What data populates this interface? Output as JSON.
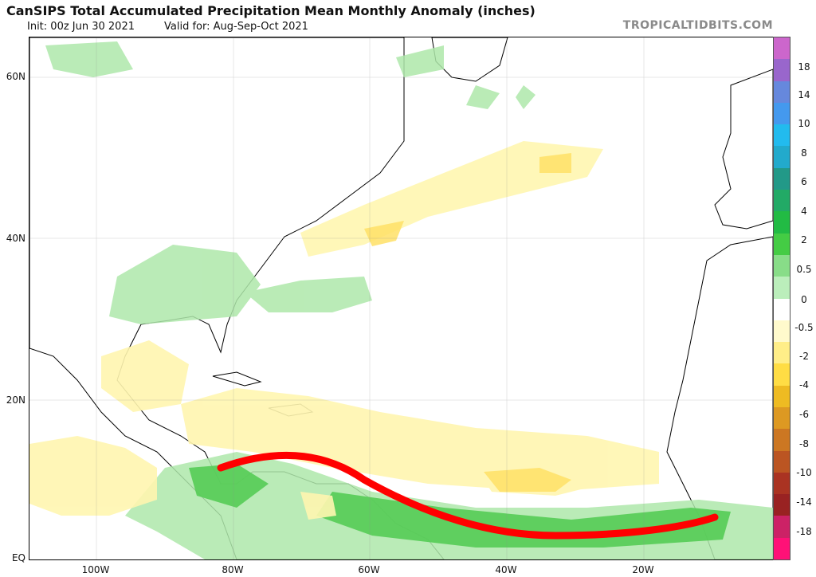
{
  "header": {
    "title": "CanSIPS Total Accumulated Precipitation Mean Monthly Anomaly (inches)",
    "init": "Init: 00z Jun 30 2021",
    "valid": "Valid for: Aug-Sep-Oct 2021",
    "brand": "TROPICALTIDBITS.COM"
  },
  "map": {
    "lat_labels": [
      "60N",
      "40N",
      "20N",
      "EQ"
    ],
    "lon_labels": [
      "100W",
      "80W",
      "60W",
      "40W",
      "20W"
    ],
    "land_color": "#ffffff",
    "ocean_color": "#ffffff",
    "track_color": "#ff0000"
  },
  "colorbar": {
    "labels": [
      "18",
      "14",
      "10",
      "8",
      "6",
      "4",
      "2",
      "0.5",
      "0",
      "-0.5",
      "-2",
      "-4",
      "-6",
      "-8",
      "-10",
      "-14",
      "-18"
    ],
    "colors": [
      "#cc66cc",
      "#9966cc",
      "#6688dd",
      "#4499ee",
      "#22bbee",
      "#22aacc",
      "#229988",
      "#22aa66",
      "#22bb44",
      "#44cc44",
      "#88dd88",
      "#bbeebb",
      "#ffffff",
      "#fffacc",
      "#ffee88",
      "#ffdd44",
      "#eebb22",
      "#dd9922",
      "#cc7722",
      "#bb5522",
      "#aa3322",
      "#992222",
      "#cc2266",
      "#ff1177"
    ]
  }
}
